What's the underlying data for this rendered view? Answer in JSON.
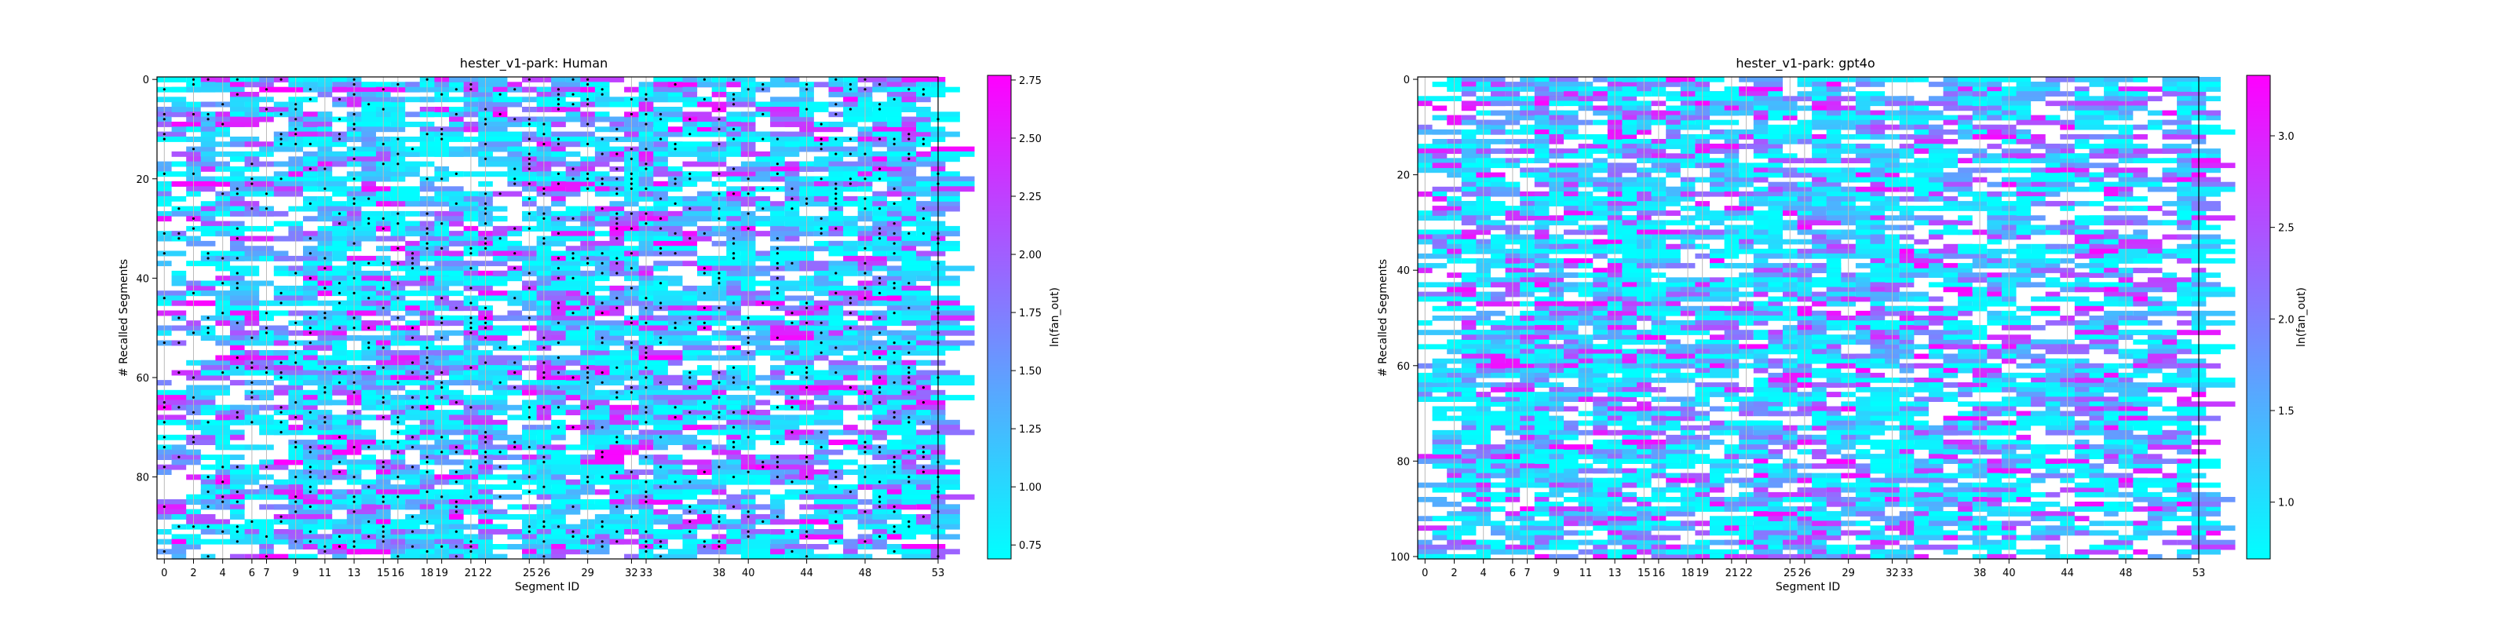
{
  "figure": {
    "colors": {
      "cmap_low": "#00ffff",
      "cmap_high": "#ff00ff",
      "axis": "#000000",
      "gridline": "#bbbbbb",
      "dot": "#000000"
    }
  },
  "chart_data": [
    {
      "type": "heatmap",
      "title": "hester_v1-park: Human",
      "xlabel": "Segment ID",
      "ylabel": "# Recalled Segments",
      "colorbar_label": "ln(fan_out)",
      "xlim": [
        0,
        53.5
      ],
      "ylim": [
        97,
        0
      ],
      "x_ticks": [
        0,
        2,
        4,
        6,
        7,
        9,
        11,
        13,
        15,
        16,
        18,
        19,
        21,
        22,
        25,
        26,
        29,
        32,
        33,
        38,
        40,
        44,
        48,
        53
      ],
      "y_ticks": [
        0,
        20,
        40,
        60,
        80
      ],
      "colorbar_range": [
        0.69,
        2.77
      ],
      "colorbar_ticks": [
        "0.75",
        "1.00",
        "1.25",
        "1.50",
        "1.75",
        "2.00",
        "2.25",
        "2.50",
        "2.75"
      ],
      "grid": "vertical lines at segment boundaries",
      "markers": "black dots on many cells",
      "seed": 11
    },
    {
      "type": "heatmap",
      "title": "hester_v1-park: gpt4o",
      "xlabel": "Segment ID",
      "ylabel": "# Recalled Segments",
      "colorbar_label": "ln(fan_out)",
      "xlim": [
        0,
        53.5
      ],
      "ylim": [
        101,
        0
      ],
      "x_ticks": [
        0,
        2,
        4,
        6,
        7,
        9,
        11,
        13,
        15,
        16,
        18,
        19,
        21,
        22,
        25,
        26,
        29,
        32,
        33,
        38,
        40,
        44,
        48,
        53
      ],
      "y_ticks": [
        0,
        20,
        40,
        60,
        80,
        100
      ],
      "colorbar_range": [
        0.69,
        3.33
      ],
      "colorbar_ticks": [
        "1.0",
        "1.5",
        "2.0",
        "2.5",
        "3.0"
      ],
      "grid": "vertical lines at segment boundaries",
      "markers": "none",
      "seed": 29
    }
  ]
}
